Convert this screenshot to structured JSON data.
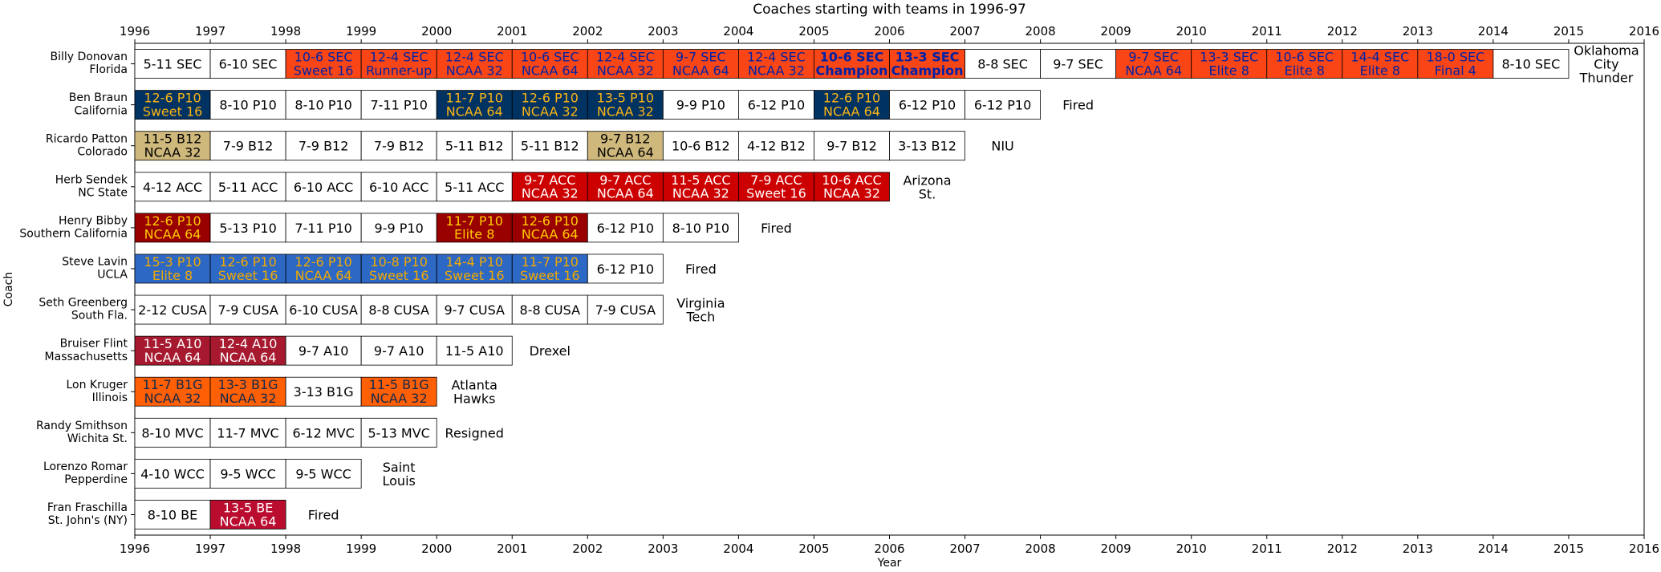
{
  "chart_data": {
    "type": "table",
    "title": "Coaches starting with teams in 1996-97",
    "xlabel": "Year",
    "ylabel": "Coach",
    "xlim": [
      1996,
      2016
    ],
    "xticks": [
      "1996",
      "1997",
      "1998",
      "1999",
      "2000",
      "2001",
      "2002",
      "2003",
      "2004",
      "2005",
      "2006",
      "2007",
      "2008",
      "2009",
      "2010",
      "2011",
      "2012",
      "2013",
      "2014",
      "2015",
      "2016"
    ],
    "colors": {
      "Florida": {
        "bg": "#FA4616",
        "fg": "#0021A5"
      },
      "California": {
        "bg": "#003262",
        "fg": "#FDB515"
      },
      "Colorado": {
        "bg": "#CFB87C",
        "fg": "#000000"
      },
      "NC State": {
        "bg": "#CC0000",
        "fg": "#FFFFFF"
      },
      "Southern California": {
        "bg": "#990000",
        "fg": "#FFCC00"
      },
      "UCLA": {
        "bg": "#2D68C4",
        "fg": "#F2A900"
      },
      "Massachusetts": {
        "bg": "#A6192E",
        "fg": "#FFFFFF"
      },
      "Illinois": {
        "bg": "#FF5F05",
        "fg": "#13294B"
      },
      "St. John's (NY)": {
        "bg": "#BA0C2F",
        "fg": "#FFFFFF"
      },
      "plain": {
        "bg": "#FFFFFF",
        "fg": "#000000"
      }
    },
    "rows": [
      {
        "coach": "Billy Donovan",
        "team": "Florida",
        "seasons": [
          {
            "year": 1996,
            "record": "5-11 SEC",
            "result": ""
          },
          {
            "year": 1997,
            "record": "6-10 SEC",
            "result": ""
          },
          {
            "year": 1998,
            "record": "10-6 SEC",
            "result": "Sweet 16"
          },
          {
            "year": 1999,
            "record": "12-4 SEC",
            "result": "Runner-up"
          },
          {
            "year": 2000,
            "record": "12-4 SEC",
            "result": "NCAA 32"
          },
          {
            "year": 2001,
            "record": "10-6 SEC",
            "result": "NCAA 64"
          },
          {
            "year": 2002,
            "record": "12-4 SEC",
            "result": "NCAA 32"
          },
          {
            "year": 2003,
            "record": "9-7 SEC",
            "result": "NCAA 64"
          },
          {
            "year": 2004,
            "record": "12-4 SEC",
            "result": "NCAA 32"
          },
          {
            "year": 2005,
            "record": "10-6 SEC",
            "result": "Champion"
          },
          {
            "year": 2006,
            "record": "13-3 SEC",
            "result": "Champion"
          },
          {
            "year": 2007,
            "record": "8-8 SEC",
            "result": ""
          },
          {
            "year": 2008,
            "record": "9-7 SEC",
            "result": ""
          },
          {
            "year": 2009,
            "record": "9-7 SEC",
            "result": "NCAA 64"
          },
          {
            "year": 2010,
            "record": "13-3 SEC",
            "result": "Elite 8"
          },
          {
            "year": 2011,
            "record": "10-6 SEC",
            "result": "Elite 8"
          },
          {
            "year": 2012,
            "record": "14-4 SEC",
            "result": "Elite 8"
          },
          {
            "year": 2013,
            "record": "18-0 SEC",
            "result": "Final 4"
          },
          {
            "year": 2014,
            "record": "8-10 SEC",
            "result": ""
          }
        ],
        "outcome": "Oklahoma City Thunder"
      },
      {
        "coach": "Ben Braun",
        "team": "California",
        "seasons": [
          {
            "year": 1996,
            "record": "12-6 P10",
            "result": "Sweet 16"
          },
          {
            "year": 1997,
            "record": "8-10 P10",
            "result": ""
          },
          {
            "year": 1998,
            "record": "8-10 P10",
            "result": ""
          },
          {
            "year": 1999,
            "record": "7-11 P10",
            "result": ""
          },
          {
            "year": 2000,
            "record": "11-7 P10",
            "result": "NCAA 64"
          },
          {
            "year": 2001,
            "record": "12-6 P10",
            "result": "NCAA 32"
          },
          {
            "year": 2002,
            "record": "13-5 P10",
            "result": "NCAA 32"
          },
          {
            "year": 2003,
            "record": "9-9 P10",
            "result": ""
          },
          {
            "year": 2004,
            "record": "6-12 P10",
            "result": ""
          },
          {
            "year": 2005,
            "record": "12-6 P10",
            "result": "NCAA 64"
          },
          {
            "year": 2006,
            "record": "6-12 P10",
            "result": ""
          },
          {
            "year": 2007,
            "record": "6-12 P10",
            "result": ""
          }
        ],
        "outcome": "Fired"
      },
      {
        "coach": "Ricardo Patton",
        "team": "Colorado",
        "seasons": [
          {
            "year": 1996,
            "record": "11-5 B12",
            "result": "NCAA 32"
          },
          {
            "year": 1997,
            "record": "7-9 B12",
            "result": ""
          },
          {
            "year": 1998,
            "record": "7-9 B12",
            "result": ""
          },
          {
            "year": 1999,
            "record": "7-9 B12",
            "result": ""
          },
          {
            "year": 2000,
            "record": "5-11 B12",
            "result": ""
          },
          {
            "year": 2001,
            "record": "5-11 B12",
            "result": ""
          },
          {
            "year": 2002,
            "record": "9-7 B12",
            "result": "NCAA 64"
          },
          {
            "year": 2003,
            "record": "10-6 B12",
            "result": ""
          },
          {
            "year": 2004,
            "record": "4-12 B12",
            "result": ""
          },
          {
            "year": 2005,
            "record": "9-7 B12",
            "result": ""
          },
          {
            "year": 2006,
            "record": "3-13 B12",
            "result": ""
          }
        ],
        "outcome": "NIU"
      },
      {
        "coach": "Herb Sendek",
        "team": "NC State",
        "seasons": [
          {
            "year": 1996,
            "record": "4-12 ACC",
            "result": ""
          },
          {
            "year": 1997,
            "record": "5-11 ACC",
            "result": ""
          },
          {
            "year": 1998,
            "record": "6-10 ACC",
            "result": ""
          },
          {
            "year": 1999,
            "record": "6-10 ACC",
            "result": ""
          },
          {
            "year": 2000,
            "record": "5-11 ACC",
            "result": ""
          },
          {
            "year": 2001,
            "record": "9-7 ACC",
            "result": "NCAA 32"
          },
          {
            "year": 2002,
            "record": "9-7 ACC",
            "result": "NCAA 64"
          },
          {
            "year": 2003,
            "record": "11-5 ACC",
            "result": "NCAA 32"
          },
          {
            "year": 2004,
            "record": "7-9 ACC",
            "result": "Sweet 16"
          },
          {
            "year": 2005,
            "record": "10-6 ACC",
            "result": "NCAA 32"
          }
        ],
        "outcome": "Arizona St."
      },
      {
        "coach": "Henry Bibby",
        "team": "Southern California",
        "seasons": [
          {
            "year": 1996,
            "record": "12-6 P10",
            "result": "NCAA 64"
          },
          {
            "year": 1997,
            "record": "5-13 P10",
            "result": ""
          },
          {
            "year": 1998,
            "record": "7-11 P10",
            "result": ""
          },
          {
            "year": 1999,
            "record": "9-9 P10",
            "result": ""
          },
          {
            "year": 2000,
            "record": "11-7 P10",
            "result": "Elite 8"
          },
          {
            "year": 2001,
            "record": "12-6 P10",
            "result": "NCAA 64"
          },
          {
            "year": 2002,
            "record": "6-12 P10",
            "result": ""
          },
          {
            "year": 2003,
            "record": "8-10 P10",
            "result": ""
          }
        ],
        "outcome": "Fired"
      },
      {
        "coach": "Steve Lavin",
        "team": "UCLA",
        "seasons": [
          {
            "year": 1996,
            "record": "15-3 P10",
            "result": "Elite 8"
          },
          {
            "year": 1997,
            "record": "12-6 P10",
            "result": "Sweet 16"
          },
          {
            "year": 1998,
            "record": "12-6 P10",
            "result": "NCAA 64"
          },
          {
            "year": 1999,
            "record": "10-8 P10",
            "result": "Sweet 16"
          },
          {
            "year": 2000,
            "record": "14-4 P10",
            "result": "Sweet 16"
          },
          {
            "year": 2001,
            "record": "11-7 P10",
            "result": "Sweet 16"
          },
          {
            "year": 2002,
            "record": "6-12 P10",
            "result": ""
          }
        ],
        "outcome": "Fired"
      },
      {
        "coach": "Seth Greenberg",
        "team": "South Fla.",
        "seasons": [
          {
            "year": 1996,
            "record": "2-12 CUSA",
            "result": ""
          },
          {
            "year": 1997,
            "record": "7-9 CUSA",
            "result": ""
          },
          {
            "year": 1998,
            "record": "6-10 CUSA",
            "result": ""
          },
          {
            "year": 1999,
            "record": "8-8 CUSA",
            "result": ""
          },
          {
            "year": 2000,
            "record": "9-7 CUSA",
            "result": ""
          },
          {
            "year": 2001,
            "record": "8-8 CUSA",
            "result": ""
          },
          {
            "year": 2002,
            "record": "7-9 CUSA",
            "result": ""
          }
        ],
        "outcome": "Virginia Tech"
      },
      {
        "coach": "Bruiser Flint",
        "team": "Massachusetts",
        "seasons": [
          {
            "year": 1996,
            "record": "11-5 A10",
            "result": "NCAA 64"
          },
          {
            "year": 1997,
            "record": "12-4 A10",
            "result": "NCAA 64"
          },
          {
            "year": 1998,
            "record": "9-7 A10",
            "result": ""
          },
          {
            "year": 1999,
            "record": "9-7 A10",
            "result": ""
          },
          {
            "year": 2000,
            "record": "11-5 A10",
            "result": ""
          }
        ],
        "outcome": "Drexel"
      },
      {
        "coach": "Lon Kruger",
        "team": "Illinois",
        "seasons": [
          {
            "year": 1996,
            "record": "11-7 B1G",
            "result": "NCAA 32"
          },
          {
            "year": 1997,
            "record": "13-3 B1G",
            "result": "NCAA 32"
          },
          {
            "year": 1998,
            "record": "3-13 B1G",
            "result": ""
          },
          {
            "year": 1999,
            "record": "11-5 B1G",
            "result": "NCAA 32"
          }
        ],
        "outcome": "Atlanta Hawks"
      },
      {
        "coach": "Randy Smithson",
        "team": "Wichita St.",
        "seasons": [
          {
            "year": 1996,
            "record": "8-10 MVC",
            "result": ""
          },
          {
            "year": 1997,
            "record": "11-7 MVC",
            "result": ""
          },
          {
            "year": 1998,
            "record": "6-12 MVC",
            "result": ""
          },
          {
            "year": 1999,
            "record": "5-13 MVC",
            "result": ""
          }
        ],
        "outcome": "Resigned"
      },
      {
        "coach": "Lorenzo Romar",
        "team": "Pepperdine",
        "seasons": [
          {
            "year": 1996,
            "record": "4-10 WCC",
            "result": ""
          },
          {
            "year": 1997,
            "record": "9-5 WCC",
            "result": ""
          },
          {
            "year": 1998,
            "record": "9-5 WCC",
            "result": ""
          }
        ],
        "outcome": "Saint Louis"
      },
      {
        "coach": "Fran Fraschilla",
        "team": "St. John's (NY)",
        "seasons": [
          {
            "year": 1996,
            "record": "8-10 BE",
            "result": ""
          },
          {
            "year": 1997,
            "record": "13-5 BE",
            "result": "NCAA 64"
          }
        ],
        "outcome": "Fired"
      }
    ]
  }
}
